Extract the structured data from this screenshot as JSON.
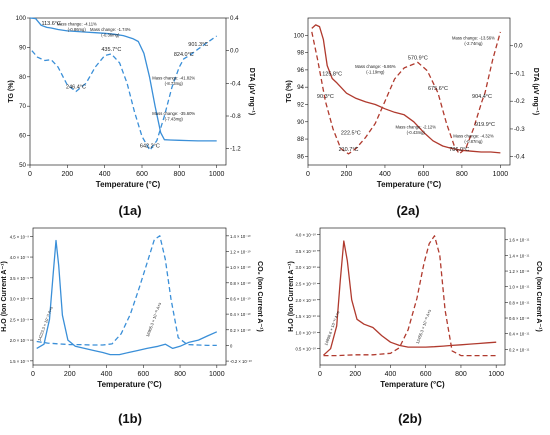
{
  "chart_data": [
    {
      "id": "1a",
      "type": "line",
      "panel_label": "(1a)",
      "xlabel": "Temperature (°C)",
      "ylabel_left": "TG (%)",
      "ylabel_right": "DTA (µV mg⁻¹)",
      "xlim": [
        0,
        1050
      ],
      "ylim_left": [
        50,
        100
      ],
      "ylim_right": [
        -1.4,
        0.4
      ],
      "xticks": [
        "0",
        "200",
        "400",
        "600",
        "800",
        "1000"
      ],
      "yticks_left": [
        "50",
        "60",
        "70",
        "80",
        "90",
        "100"
      ],
      "yticks_right": [
        "-1.2",
        "-0.8",
        "-0.4",
        "0.0",
        "0.4"
      ],
      "color": "#3a8fd8",
      "series": [
        {
          "axis": "left",
          "style": "solid",
          "x": [
            0,
            30,
            60,
            90,
            113.6,
            150,
            200,
            250,
            300,
            350,
            400,
            450,
            500,
            550,
            580,
            610,
            640,
            670,
            700,
            720,
            750,
            800,
            850,
            900,
            950,
            1000
          ],
          "y": [
            100,
            99.8,
            97.5,
            96.8,
            96.6,
            96.1,
            95.6,
            95.4,
            95.2,
            95.0,
            94.8,
            94.5,
            94.0,
            93.0,
            92.0,
            88.0,
            80.0,
            70.0,
            61.0,
            58.6,
            58.5,
            58.4,
            58.3,
            58.2,
            58.2,
            58.2
          ]
        },
        {
          "axis": "right",
          "style": "dashed",
          "x": [
            10,
            40,
            80,
            113.6,
            150,
            200,
            246.4,
            300,
            350,
            400,
            435.7,
            480,
            520,
            560,
            600,
            642.2,
            680,
            720,
            760,
            800,
            824,
            860,
            901.3,
            950,
            1000
          ],
          "y": [
            0.0,
            -0.08,
            -0.12,
            -0.11,
            -0.2,
            -0.42,
            -0.5,
            -0.4,
            -0.2,
            -0.06,
            -0.04,
            -0.15,
            -0.4,
            -0.75,
            -1.05,
            -1.22,
            -1.1,
            -0.8,
            -0.45,
            -0.2,
            -0.1,
            -0.05,
            0.02,
            0.1,
            0.18
          ]
        }
      ],
      "annotations": [
        {
          "text": "113.6°C",
          "x": 113.6,
          "y": 96.6,
          "axis": "left"
        },
        {
          "text": "246.4°C",
          "x": 246.4,
          "y": -0.5,
          "axis": "right"
        },
        {
          "text": "435.7°C",
          "x": 435.7,
          "y": -0.04,
          "axis": "right"
        },
        {
          "text": "642.2°C",
          "x": 642.2,
          "y": -1.22,
          "axis": "right"
        },
        {
          "text": "824.0°C",
          "x": 824.0,
          "y": -0.1,
          "axis": "right"
        },
        {
          "text": "901.3°C",
          "x": 901.3,
          "y": 0.02,
          "axis": "right"
        }
      ],
      "mass_changes": [
        {
          "lines": [
            "Mass change: -4.11%",
            "(-0.86mg)"
          ],
          "x": 250,
          "y": 97.5
        },
        {
          "lines": [
            "Mass change: -1.74%",
            "(-0.36mg)"
          ],
          "x": 430,
          "y": 95.5
        },
        {
          "lines": [
            "Mass change: -41.82%",
            "(-8.73mg)"
          ],
          "x": 770,
          "y": 79
        },
        {
          "lines": [
            "Mass change: -35.60%",
            "(-7.43mg)"
          ],
          "x": 770,
          "y": 67
        }
      ]
    },
    {
      "id": "2a",
      "type": "line",
      "panel_label": "(2a)",
      "xlabel": "Temperature (°C)",
      "ylabel_left": "TG (%)",
      "ylabel_right": "DTA (µV mg⁻¹)",
      "xlim": [
        0,
        1050
      ],
      "ylim_left": [
        85,
        102
      ],
      "ylim_right": [
        -0.43,
        0.1
      ],
      "xticks": [
        "0",
        "200",
        "400",
        "600",
        "800",
        "1000"
      ],
      "yticks_left": [
        "86",
        "88",
        "90",
        "92",
        "94",
        "96",
        "98",
        "100"
      ],
      "yticks_right": [
        "-0.4",
        "-0.3",
        "-0.2",
        "-0.1",
        "0.0"
      ],
      "color": "#b03a2e",
      "series": [
        {
          "axis": "left",
          "style": "solid",
          "x": [
            20,
            40,
            60,
            80,
            100,
            125.8,
            150,
            200,
            250,
            300,
            350,
            400,
            450,
            500,
            550,
            600,
            650,
            700,
            750,
            800,
            850,
            900,
            950,
            1000
          ],
          "y": [
            100.8,
            101.2,
            101.0,
            99.5,
            96.5,
            95.0,
            94.5,
            93.3,
            92.7,
            92.3,
            92.0,
            91.5,
            91.1,
            90.8,
            90.0,
            88.8,
            87.8,
            87.2,
            86.9,
            86.7,
            86.6,
            86.5,
            86.5,
            86.4
          ]
        },
        {
          "axis": "right",
          "style": "dashed",
          "x": [
            20,
            50,
            90.3,
            130,
            170,
            210.7,
            250,
            300,
            350,
            400,
            450,
            500,
            570.9,
            620,
            675.6,
            720,
            760,
            786,
            820,
            860,
            904.4,
            919.9,
            960,
            1000
          ],
          "y": [
            0.05,
            -0.05,
            -0.2,
            -0.3,
            -0.37,
            -0.39,
            -0.37,
            -0.33,
            -0.28,
            -0.2,
            -0.12,
            -0.08,
            -0.06,
            -0.09,
            -0.17,
            -0.28,
            -0.36,
            -0.39,
            -0.37,
            -0.3,
            -0.2,
            -0.17,
            -0.05,
            0.05
          ]
        }
      ],
      "annotations": [
        {
          "text": "125.8°C",
          "x": 125.8,
          "y": 95.0,
          "axis": "left"
        },
        {
          "text": "90.3°C",
          "x": 90.3,
          "y": -0.2,
          "axis": "right"
        },
        {
          "text": "222.5°C",
          "x": 222.5,
          "y": -0.33,
          "axis": "right"
        },
        {
          "text": "210.7°C",
          "x": 210.7,
          "y": -0.39,
          "axis": "right"
        },
        {
          "text": "570.9°C",
          "x": 570.9,
          "y": -0.06,
          "axis": "right"
        },
        {
          "text": "675.6°C",
          "x": 675.6,
          "y": -0.17,
          "axis": "right"
        },
        {
          "text": "786.0°C",
          "x": 786.0,
          "y": -0.39,
          "axis": "right"
        },
        {
          "text": "904.4°C",
          "x": 904.4,
          "y": -0.2,
          "axis": "right"
        },
        {
          "text": "919.9°C",
          "x": 919.9,
          "y": -0.3,
          "axis": "right"
        }
      ],
      "mass_changes": [
        {
          "lines": [
            "Mass change: -5.86%",
            "(-1.19mg)"
          ],
          "x": 350,
          "y": 96.2
        },
        {
          "lines": [
            "Mass change: -2.12%",
            "(-0.43mg)"
          ],
          "x": 560,
          "y": 89.2
        },
        {
          "lines": [
            "Mass change: -13.56%",
            "(-2.74mg)"
          ],
          "x": 860,
          "y": 99.5
        },
        {
          "lines": [
            "Mass change: -4.32%",
            "(-0.87mg)"
          ],
          "x": 860,
          "y": 88.2
        }
      ]
    },
    {
      "id": "1b",
      "type": "line",
      "panel_label": "(1b)",
      "xlabel": "Temperature (°C)",
      "ylabel_left": "H₂O (Ion Current A⁻¹)",
      "ylabel_right": "CO₂ (Ion Current A⁻¹)",
      "xlim": [
        0,
        1050
      ],
      "ylim_left": [
        1.4e-09,
        4.7e-09
      ],
      "ylim_right": [
        -2.5e-11,
        1.5e-10
      ],
      "xticks": [
        "0",
        "200",
        "400",
        "600",
        "800",
        "1000"
      ],
      "yticks_left": [
        "1.5 × 10⁻⁹",
        "2.0 × 10⁻⁹",
        "2.5 × 10⁻⁹",
        "3.0 × 10⁻⁹",
        "3.5 × 10⁻⁹",
        "4.0 × 10⁻⁹",
        "4.5 × 10⁻⁹"
      ],
      "yticks_right": [
        "-0.2 × 10⁻¹⁰",
        "0",
        "0.2 × 10⁻¹⁰",
        "0.4 × 10⁻¹⁰",
        "0.6 × 10⁻¹⁰",
        "0.8 × 10⁻¹⁰",
        "1.0 × 10⁻¹⁰",
        "1.2 × 10⁻¹⁰",
        "1.4 × 10⁻¹⁰"
      ],
      "color": "#3a8fd8",
      "series": [
        {
          "axis": "left",
          "style": "solid",
          "x": [
            20,
            60,
            90,
            110,
            125,
            140,
            160,
            190,
            230,
            280,
            330,
            380,
            420,
            470,
            520,
            570,
            620,
            680,
            720,
            760,
            800,
            850,
            900,
            950,
            1000
          ],
          "y": [
            1.8e-09,
            1.9e-09,
            2.5e-09,
            3.6e-09,
            4.4e-09,
            3.8e-09,
            2.6e-09,
            2e-09,
            1.85e-09,
            1.8e-09,
            1.75e-09,
            1.7e-09,
            1.65e-09,
            1.65e-09,
            1.7e-09,
            1.75e-09,
            1.8e-09,
            1.85e-09,
            1.9e-09,
            1.8e-09,
            1.85e-09,
            1.95e-09,
            2e-09,
            2.1e-09,
            2.2e-09
          ]
        },
        {
          "axis": "right",
          "style": "dashed",
          "x": [
            20,
            80,
            140,
            200,
            260,
            320,
            380,
            430,
            480,
            530,
            580,
            620,
            660,
            690,
            720,
            750,
            790,
            840,
            900,
            950,
            1000
          ],
          "y": [
            5e-12,
            3e-12,
            2e-12,
            1e-12,
            1e-12,
            5e-13,
            5e-13,
            2e-12,
            1.5e-11,
            4e-11,
            7.5e-11,
            1.05e-10,
            1.35e-10,
            1.4e-10,
            1.1e-10,
            6e-11,
            1e-11,
            1e-12,
            5e-13,
            0,
            0
          ]
        }
      ],
      "annotations": [
        {
          "text": "14223.3 × 10⁻¹¹ A×s",
          "x": 40,
          "y": 1.9e-09,
          "axis": "left"
        },
        {
          "text": "16965.3 × 10⁻¹¹ A×s",
          "x": 630,
          "y": 2e-09,
          "axis": "left"
        }
      ]
    },
    {
      "id": "2b",
      "type": "line",
      "panel_label": "(2b)",
      "xlabel": "Temperature (°C)",
      "ylabel_left": "H₂O (Ion Current A⁻¹)",
      "ylabel_right": "CO₂ (Ion Current A⁻¹)",
      "xlim": [
        0,
        1050
      ],
      "ylim_left": [
        0,
        4.2e-10
      ],
      "ylim_right": [
        0,
        1.75e-11
      ],
      "xticks": [
        "0",
        "200",
        "400",
        "600",
        "800",
        "1000"
      ],
      "yticks_left": [
        "0.5 × 10⁻¹⁰",
        "1.0 × 10⁻¹⁰",
        "1.5 × 10⁻¹⁰",
        "2.0 × 10⁻¹⁰",
        "2.5 × 10⁻¹⁰",
        "3.0 × 10⁻¹⁰",
        "3.5 × 10⁻¹⁰",
        "4.0 × 10⁻¹⁰"
      ],
      "yticks_right": [
        "0.2 × 10⁻¹¹",
        "0.4 × 10⁻¹¹",
        "0.6 × 10⁻¹¹",
        "0.8 × 10⁻¹¹",
        "1.0 × 10⁻¹¹",
        "1.2 × 10⁻¹¹",
        "1.4 × 10⁻¹¹",
        "1.6 × 10⁻¹¹"
      ],
      "color": "#b03a2e",
      "series": [
        {
          "axis": "left",
          "style": "solid",
          "x": [
            20,
            60,
            95,
            115,
            135,
            155,
            180,
            210,
            250,
            300,
            350,
            400,
            450,
            500,
            550,
            600,
            650,
            700,
            750,
            800,
            850,
            900,
            950,
            1000
          ],
          "y": [
            3e-11,
            5e-11,
            1.2e-10,
            2.6e-10,
            3.8e-10,
            3.2e-10,
            2e-10,
            1.4e-10,
            1.25e-10,
            1.15e-10,
            9e-11,
            7e-11,
            6e-11,
            5.5e-11,
            5.5e-11,
            5.5e-11,
            5.6e-11,
            5.8e-11,
            6e-11,
            6.2e-11,
            6.4e-11,
            6.6e-11,
            6.8e-11,
            7e-11
          ]
        },
        {
          "axis": "right",
          "style": "dashed",
          "x": [
            20,
            100,
            200,
            300,
            400,
            450,
            500,
            550,
            590,
            620,
            650,
            680,
            710,
            750,
            800,
            900,
            1000
          ],
          "y": [
            1.2e-12,
            1.2e-12,
            1.3e-12,
            1.3e-12,
            1.5e-12,
            2.2e-12,
            4.5e-12,
            8.5e-12,
            1.3e-11,
            1.55e-11,
            1.65e-11,
            1.4e-11,
            7e-12,
            1.8e-12,
            1.2e-12,
            1.2e-12,
            1.2e-12
          ]
        }
      ],
      "annotations": [
        {
          "text": "14856.6 × 10⁻¹¹ A×s",
          "x": 40,
          "y": 5e-11,
          "axis": "left"
        },
        {
          "text": "12455.3 × 10⁻¹¹ A×s",
          "x": 560,
          "y": 5.5e-11,
          "axis": "left"
        }
      ]
    }
  ]
}
